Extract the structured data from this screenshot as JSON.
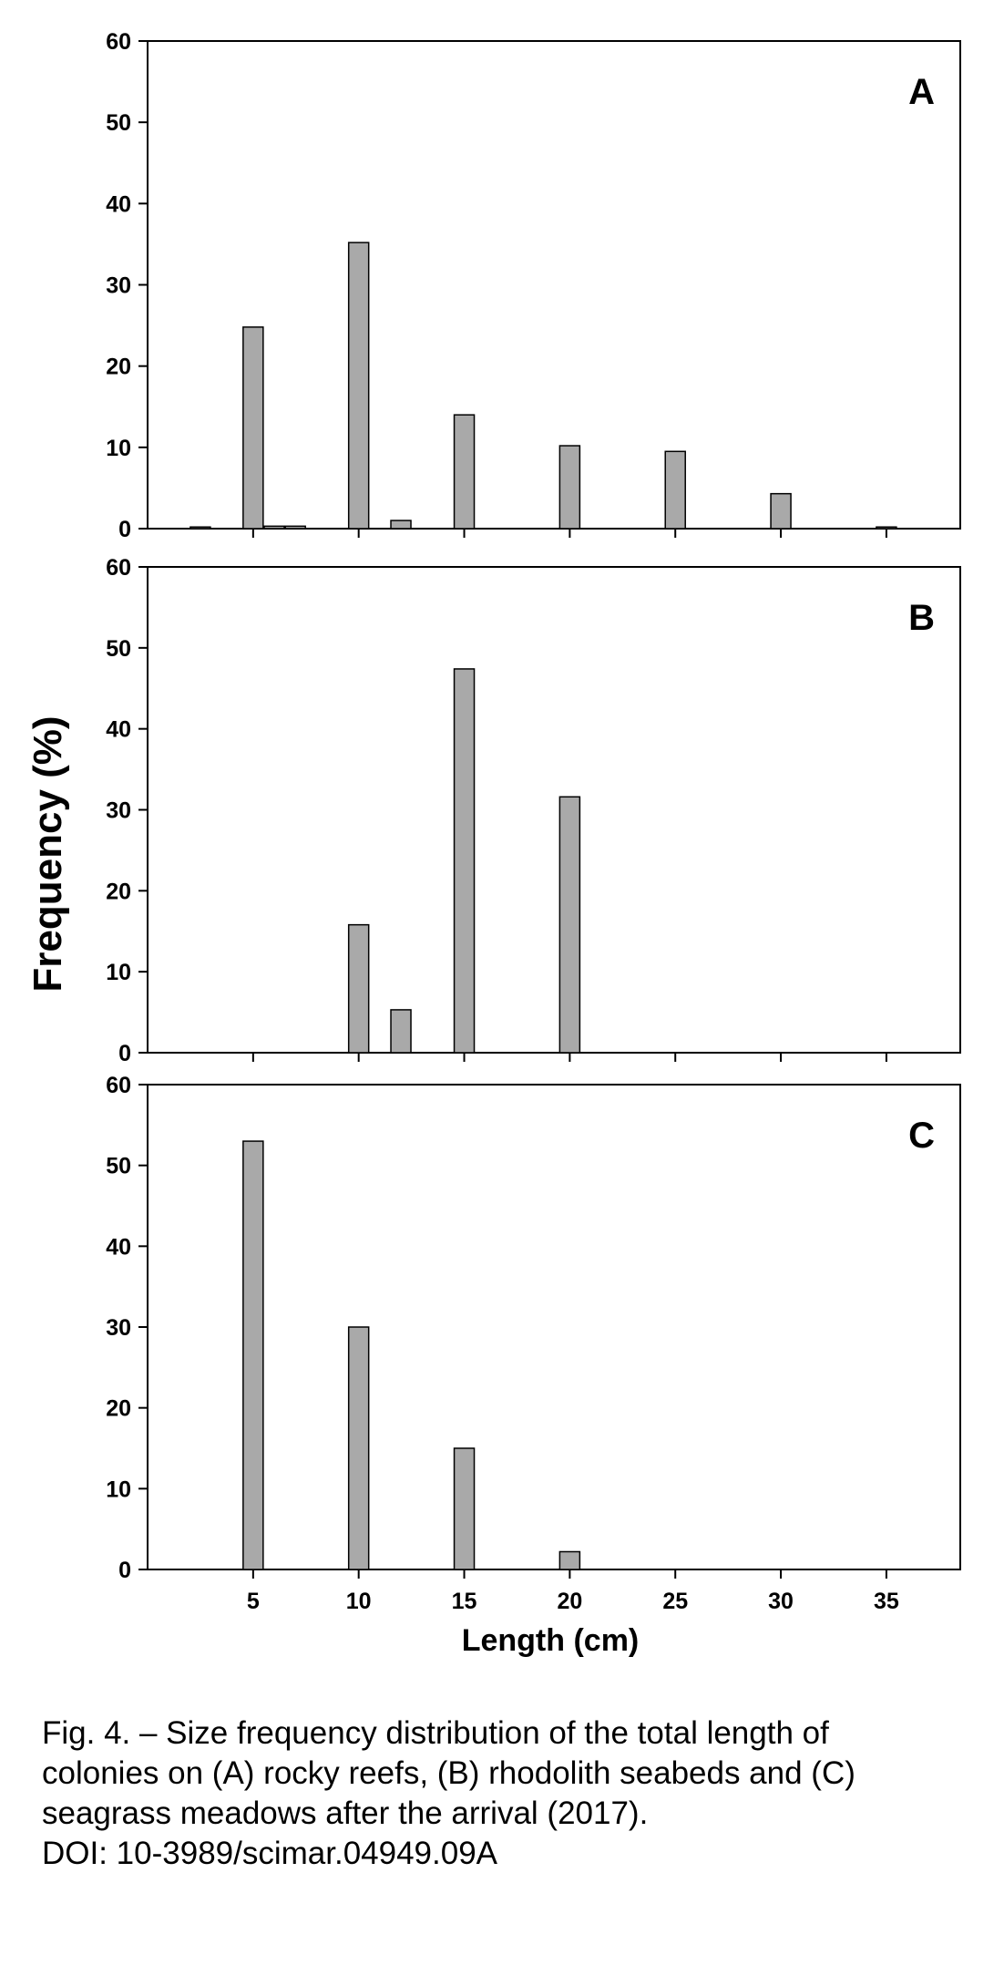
{
  "chart_data": [
    {
      "type": "bar",
      "panel_label": "A",
      "x": [
        2.5,
        5,
        6,
        7,
        10,
        12,
        15,
        20,
        25,
        30,
        35
      ],
      "values": [
        0.2,
        24.8,
        0.3,
        0.3,
        35.2,
        1.0,
        14.0,
        10.2,
        9.5,
        4.3,
        0.2
      ],
      "ylim": [
        0,
        60
      ],
      "yticks": [
        0,
        10,
        20,
        30,
        40,
        50,
        60
      ],
      "xticks": [
        5,
        10,
        15,
        20,
        25,
        30,
        35
      ],
      "xlim": [
        0,
        38.5
      ],
      "bar_color": "#a9a9a9"
    },
    {
      "type": "bar",
      "panel_label": "B",
      "x": [
        10,
        12,
        15,
        20
      ],
      "values": [
        15.8,
        5.3,
        47.4,
        31.6
      ],
      "ylim": [
        0,
        60
      ],
      "yticks": [
        0,
        10,
        20,
        30,
        40,
        50,
        60
      ],
      "xticks": [
        5,
        10,
        15,
        20,
        25,
        30,
        35
      ],
      "xlim": [
        0,
        38.5
      ],
      "bar_color": "#a9a9a9"
    },
    {
      "type": "bar",
      "panel_label": "C",
      "x": [
        5,
        10,
        15,
        20
      ],
      "values": [
        53,
        30,
        15,
        2.2
      ],
      "ylim": [
        0,
        60
      ],
      "yticks": [
        0,
        10,
        20,
        30,
        40,
        50,
        60
      ],
      "xticks": [
        5,
        10,
        15,
        20,
        25,
        30,
        35
      ],
      "xlim": [
        0,
        38.5
      ],
      "bar_color": "#a9a9a9"
    }
  ],
  "ylabel": "Frequency (%)",
  "xlabel": "Length (cm)",
  "caption": {
    "line1": "Fig. 4. – Size frequency distribution of the total length of",
    "line2": "colonies on (A) rocky reefs, (B) rhodolith seabeds and (C)",
    "line3": "seagrass meadows after the arrival (2017).",
    "doi": "DOI: 10-3989/scimar.04949.09A"
  }
}
